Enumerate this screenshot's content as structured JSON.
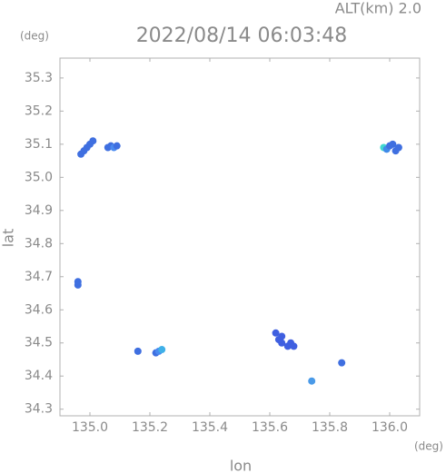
{
  "chart_data": {
    "type": "scatter",
    "title": "2022/08/14 06:03:48",
    "annotation": "ALT(km)  2.0",
    "x_label": "lon",
    "y_label": "lat",
    "x_unit": "(deg)",
    "y_unit": "(deg)",
    "x": [
      134.97,
      134.98,
      134.99,
      135.0,
      135.01,
      135.06,
      135.07,
      135.08,
      135.09,
      134.96,
      134.96,
      135.16,
      135.22,
      135.23,
      135.24,
      135.62,
      135.63,
      135.64,
      135.64,
      135.66,
      135.67,
      135.68,
      135.74,
      135.84,
      135.98,
      135.99,
      136.0,
      136.02,
      136.03,
      136.01
    ],
    "values": [
      35.07,
      35.08,
      35.09,
      35.1,
      35.11,
      35.09,
      35.095,
      35.09,
      35.095,
      34.685,
      34.675,
      34.475,
      34.47,
      34.475,
      34.48,
      34.53,
      34.51,
      34.52,
      34.5,
      34.49,
      34.5,
      34.49,
      34.385,
      34.44,
      35.09,
      35.085,
      35.095,
      35.08,
      35.09,
      35.1
    ],
    "colors": [
      "#3f6fe0",
      "#3f6fe0",
      "#3f6fe0",
      "#3f6fe0",
      "#3f6fe0",
      "#3f6fe0",
      "#3f6fe0",
      "#4a8af0",
      "#3f6fe0",
      "#3f6fe0",
      "#3f6fe0",
      "#3f6fe0",
      "#3f6fe0",
      "#4a8af0",
      "#3fb0e8",
      "#3f5fe0",
      "#3f5fe0",
      "#3f5fe0",
      "#3f5fe0",
      "#3f5fe0",
      "#3f5fe0",
      "#3f5fe0",
      "#4a9ae8",
      "#3f6fe0",
      "#40d8d0",
      "#3f8ae8",
      "#3f6fe0",
      "#3f6fe0",
      "#3f6fe0",
      "#3f6fe0"
    ],
    "xlim": [
      134.9,
      136.1
    ],
    "ylim": [
      34.28,
      35.36
    ],
    "xticks": [
      {
        "value": 135.0,
        "label": "135.0"
      },
      135.2,
      135.4,
      135.6,
      135.8,
      {
        "value": 136.0,
        "label": "136.0"
      }
    ],
    "yticks": [
      34.3,
      34.4,
      34.5,
      34.6,
      34.7,
      34.8,
      34.9,
      {
        "value": 35.0,
        "label": "35.0"
      },
      35.1,
      35.2,
      35.3
    ]
  }
}
